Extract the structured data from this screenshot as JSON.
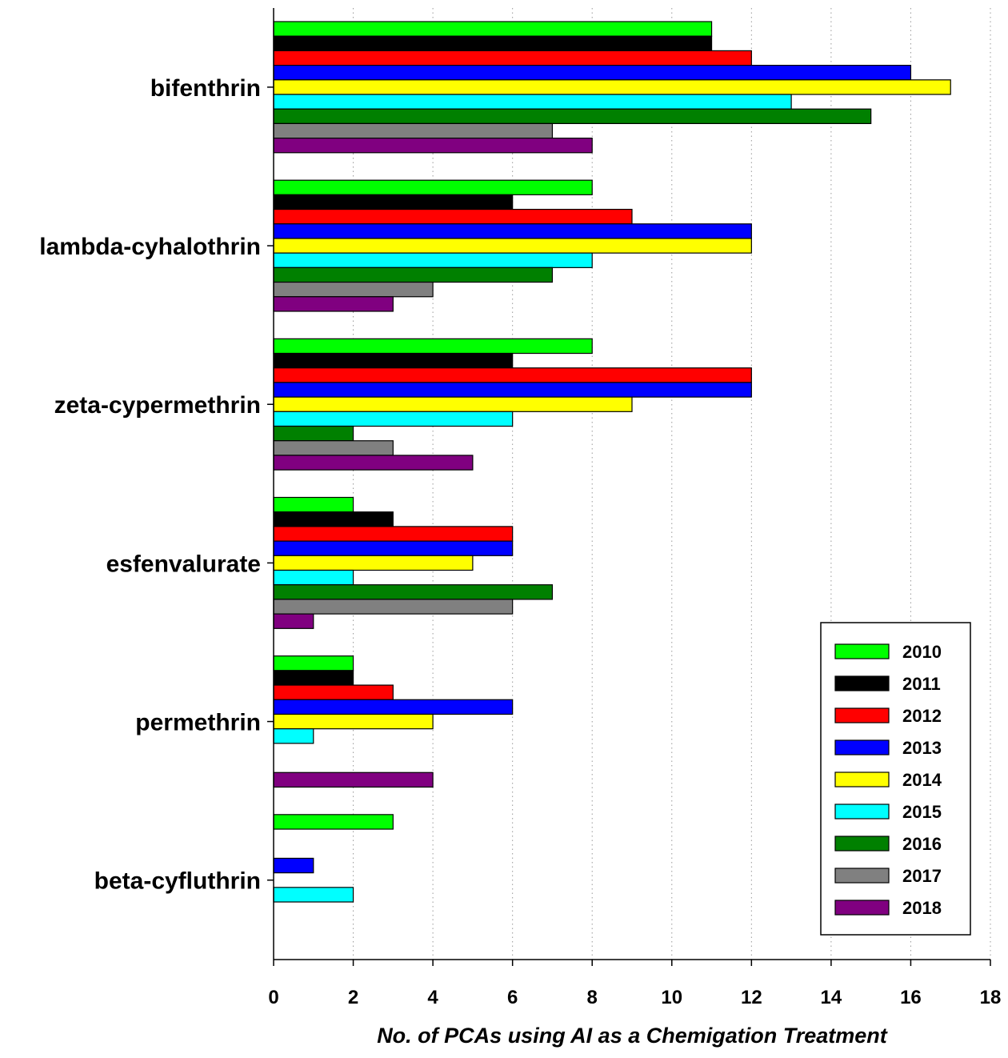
{
  "chart_data": {
    "type": "bar",
    "orientation": "horizontal",
    "categories": [
      "bifenthrin",
      "lambda-cyhalothrin",
      "zeta-cypermethrin",
      "esfenvalurate",
      "permethrin",
      "beta-cyfluthrin"
    ],
    "xlabel": "No. of PCAs using AI as a Chemigation Treatment",
    "ylabel": "",
    "title": "",
    "xlim": [
      0,
      18
    ],
    "xticks": [
      0,
      2,
      4,
      6,
      8,
      10,
      12,
      14,
      16,
      18
    ],
    "grid": "vertical dotted",
    "legend_position": "bottom-right",
    "series": [
      {
        "name": "2010",
        "color": "#00ff00",
        "values": [
          11,
          8,
          8,
          2,
          2,
          3
        ]
      },
      {
        "name": "2011",
        "color": "#000000",
        "values": [
          11,
          6,
          6,
          3,
          2,
          0
        ]
      },
      {
        "name": "2012",
        "color": "#ff0000",
        "values": [
          12,
          9,
          12,
          6,
          3,
          0
        ]
      },
      {
        "name": "2013",
        "color": "#0000ff",
        "values": [
          16,
          12,
          12,
          6,
          6,
          1
        ]
      },
      {
        "name": "2014",
        "color": "#ffff00",
        "values": [
          17,
          12,
          9,
          5,
          4,
          0
        ]
      },
      {
        "name": "2015",
        "color": "#00ffff",
        "values": [
          13,
          8,
          6,
          2,
          1,
          2
        ]
      },
      {
        "name": "2016",
        "color": "#008000",
        "values": [
          15,
          7,
          2,
          7,
          0,
          0
        ]
      },
      {
        "name": "2017",
        "color": "#808080",
        "values": [
          7,
          4,
          3,
          6,
          0,
          0
        ]
      },
      {
        "name": "2018",
        "color": "#800080",
        "values": [
          8,
          3,
          5,
          1,
          4,
          0
        ]
      }
    ]
  }
}
